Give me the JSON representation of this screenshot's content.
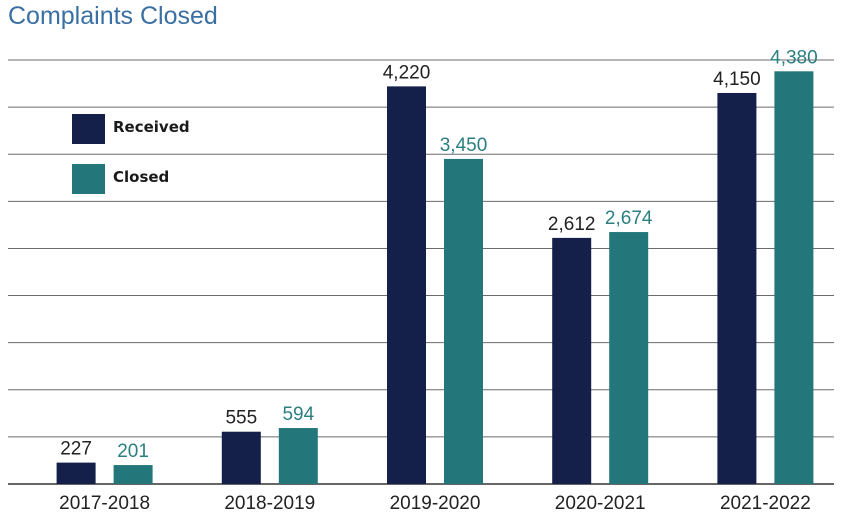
{
  "chart_data": {
    "type": "bar",
    "title": "Complaints Closed",
    "categories": [
      "2017-2018",
      "2018-2019",
      "2019-2020",
      "2020-2021",
      "2021-2022"
    ],
    "series": [
      {
        "name": "Received",
        "values": [
          227,
          555,
          4220,
          2612,
          4150
        ],
        "labels": [
          "227",
          "555",
          "4,220",
          "2,612",
          "4,150"
        ],
        "color": "#14204a"
      },
      {
        "name": "Closed",
        "values": [
          201,
          594,
          3450,
          2674,
          4380
        ],
        "labels": [
          "201",
          "594",
          "3,450",
          "2,674",
          "4,380"
        ],
        "color": "#23777a"
      }
    ],
    "ylim": [
      0,
      4500
    ],
    "grid": true,
    "gridline_step": 500,
    "legend_position": "top-left",
    "label_colors": {
      "Received": "#222222",
      "Closed": "#2b7f80"
    }
  }
}
